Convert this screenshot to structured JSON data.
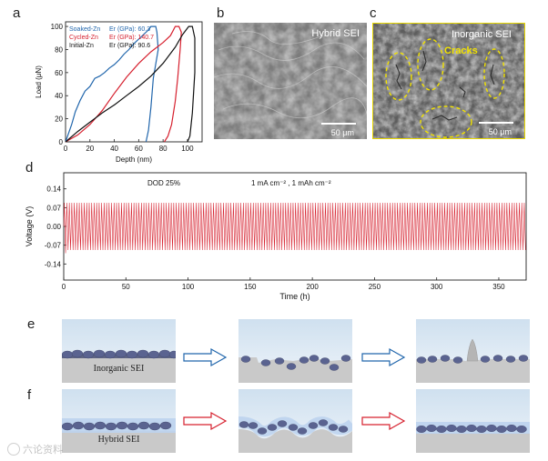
{
  "panel_labels": {
    "a": "a",
    "b": "b",
    "c": "c",
    "d": "d",
    "e": "e",
    "f": "f"
  },
  "panel_a": {
    "xlabel": "Depth (nm)",
    "ylabel": "Load (μN)",
    "legend": [
      {
        "name": "Soaked-Zn",
        "value": "Er (GPa): 60.3",
        "color": "#2166ac"
      },
      {
        "name": "Cycled-Zn",
        "value": "Er (GPa): 140.7",
        "color": "#d6202e"
      },
      {
        "name": "Initial-Zn",
        "value": "Er (GPa): 90.6",
        "color": "#111111"
      }
    ]
  },
  "panel_b": {
    "title": "Hybrid SEI",
    "scale": "50 μm"
  },
  "panel_c": {
    "title": "Inorganic SEI",
    "annotation": "Cracks",
    "scale": "50 μm"
  },
  "panel_d": {
    "xlabel": "Time (h)",
    "ylabel": "Voltage (V)",
    "annotation_left": "DOD 25%",
    "annotation_right": "1 mA cm⁻² , 1 mAh cm⁻²"
  },
  "panel_e": {
    "label": "Inorganic SEI"
  },
  "panel_f": {
    "label": "Hybrid SEI"
  },
  "watermark": "六论资料",
  "colors": {
    "blue": "#2166ac",
    "red": "#d6202e",
    "accent_yellow": "#f2e200",
    "sei_line": "#e2737e"
  },
  "chart_data": [
    {
      "type": "line",
      "panel": "a",
      "xlabel": "Depth (nm)",
      "ylabel": "Load (μN)",
      "xlim": [
        0,
        112
      ],
      "ylim": [
        0,
        104
      ],
      "x_ticks": [
        0,
        20,
        40,
        60,
        80,
        100
      ],
      "y_ticks": [
        0,
        20,
        40,
        60,
        80,
        100
      ],
      "series": [
        {
          "name": "Soaked-Zn",
          "color": "#2166ac",
          "x": [
            0,
            5,
            8,
            12,
            16,
            20,
            24,
            28,
            32,
            36,
            40,
            44,
            48,
            52,
            56,
            60,
            64,
            68,
            70,
            74,
            75,
            76,
            72,
            70,
            68,
            66
          ],
          "y": [
            0,
            15,
            26,
            36,
            44,
            48,
            55,
            57,
            60,
            64,
            67,
            71,
            76,
            80,
            85,
            89,
            93,
            97,
            100,
            100,
            95,
            80,
            55,
            30,
            10,
            0
          ]
        },
        {
          "name": "Cycled-Zn",
          "color": "#d6202e",
          "x": [
            0,
            10,
            20,
            30,
            40,
            50,
            60,
            70,
            80,
            86,
            88,
            90,
            93,
            95,
            94,
            92,
            90,
            87,
            84,
            81
          ],
          "y": [
            0,
            6,
            15,
            27,
            42,
            56,
            68,
            78,
            86,
            92,
            96,
            100,
            100,
            95,
            80,
            55,
            35,
            15,
            5,
            0
          ]
        },
        {
          "name": "Initial-Zn",
          "color": "#111111",
          "x": [
            0,
            10,
            20,
            30,
            40,
            50,
            60,
            70,
            80,
            90,
            96,
            101,
            104,
            106,
            106,
            104,
            102,
            100
          ],
          "y": [
            0,
            9,
            17,
            25,
            32,
            40,
            48,
            57,
            68,
            82,
            93,
            100,
            100,
            90,
            60,
            25,
            5,
            0
          ]
        }
      ]
    },
    {
      "type": "line",
      "panel": "d",
      "xlabel": "Time (h)",
      "ylabel": "Voltage (V)",
      "xlim": [
        0,
        372
      ],
      "ylim": [
        -0.2,
        0.2
      ],
      "x_ticks": [
        0,
        50,
        100,
        150,
        200,
        250,
        300,
        350
      ],
      "y_ticks": [
        0.14,
        0.07,
        0.0,
        -0.07,
        -0.14
      ],
      "series": [
        {
          "name": "",
          "color": "#d6202e",
          "cycle_period_h": 2.0,
          "amplitude_start": 0.088,
          "amplitude_end": 0.088,
          "first_cycle_low": -0.1
        }
      ]
    }
  ]
}
